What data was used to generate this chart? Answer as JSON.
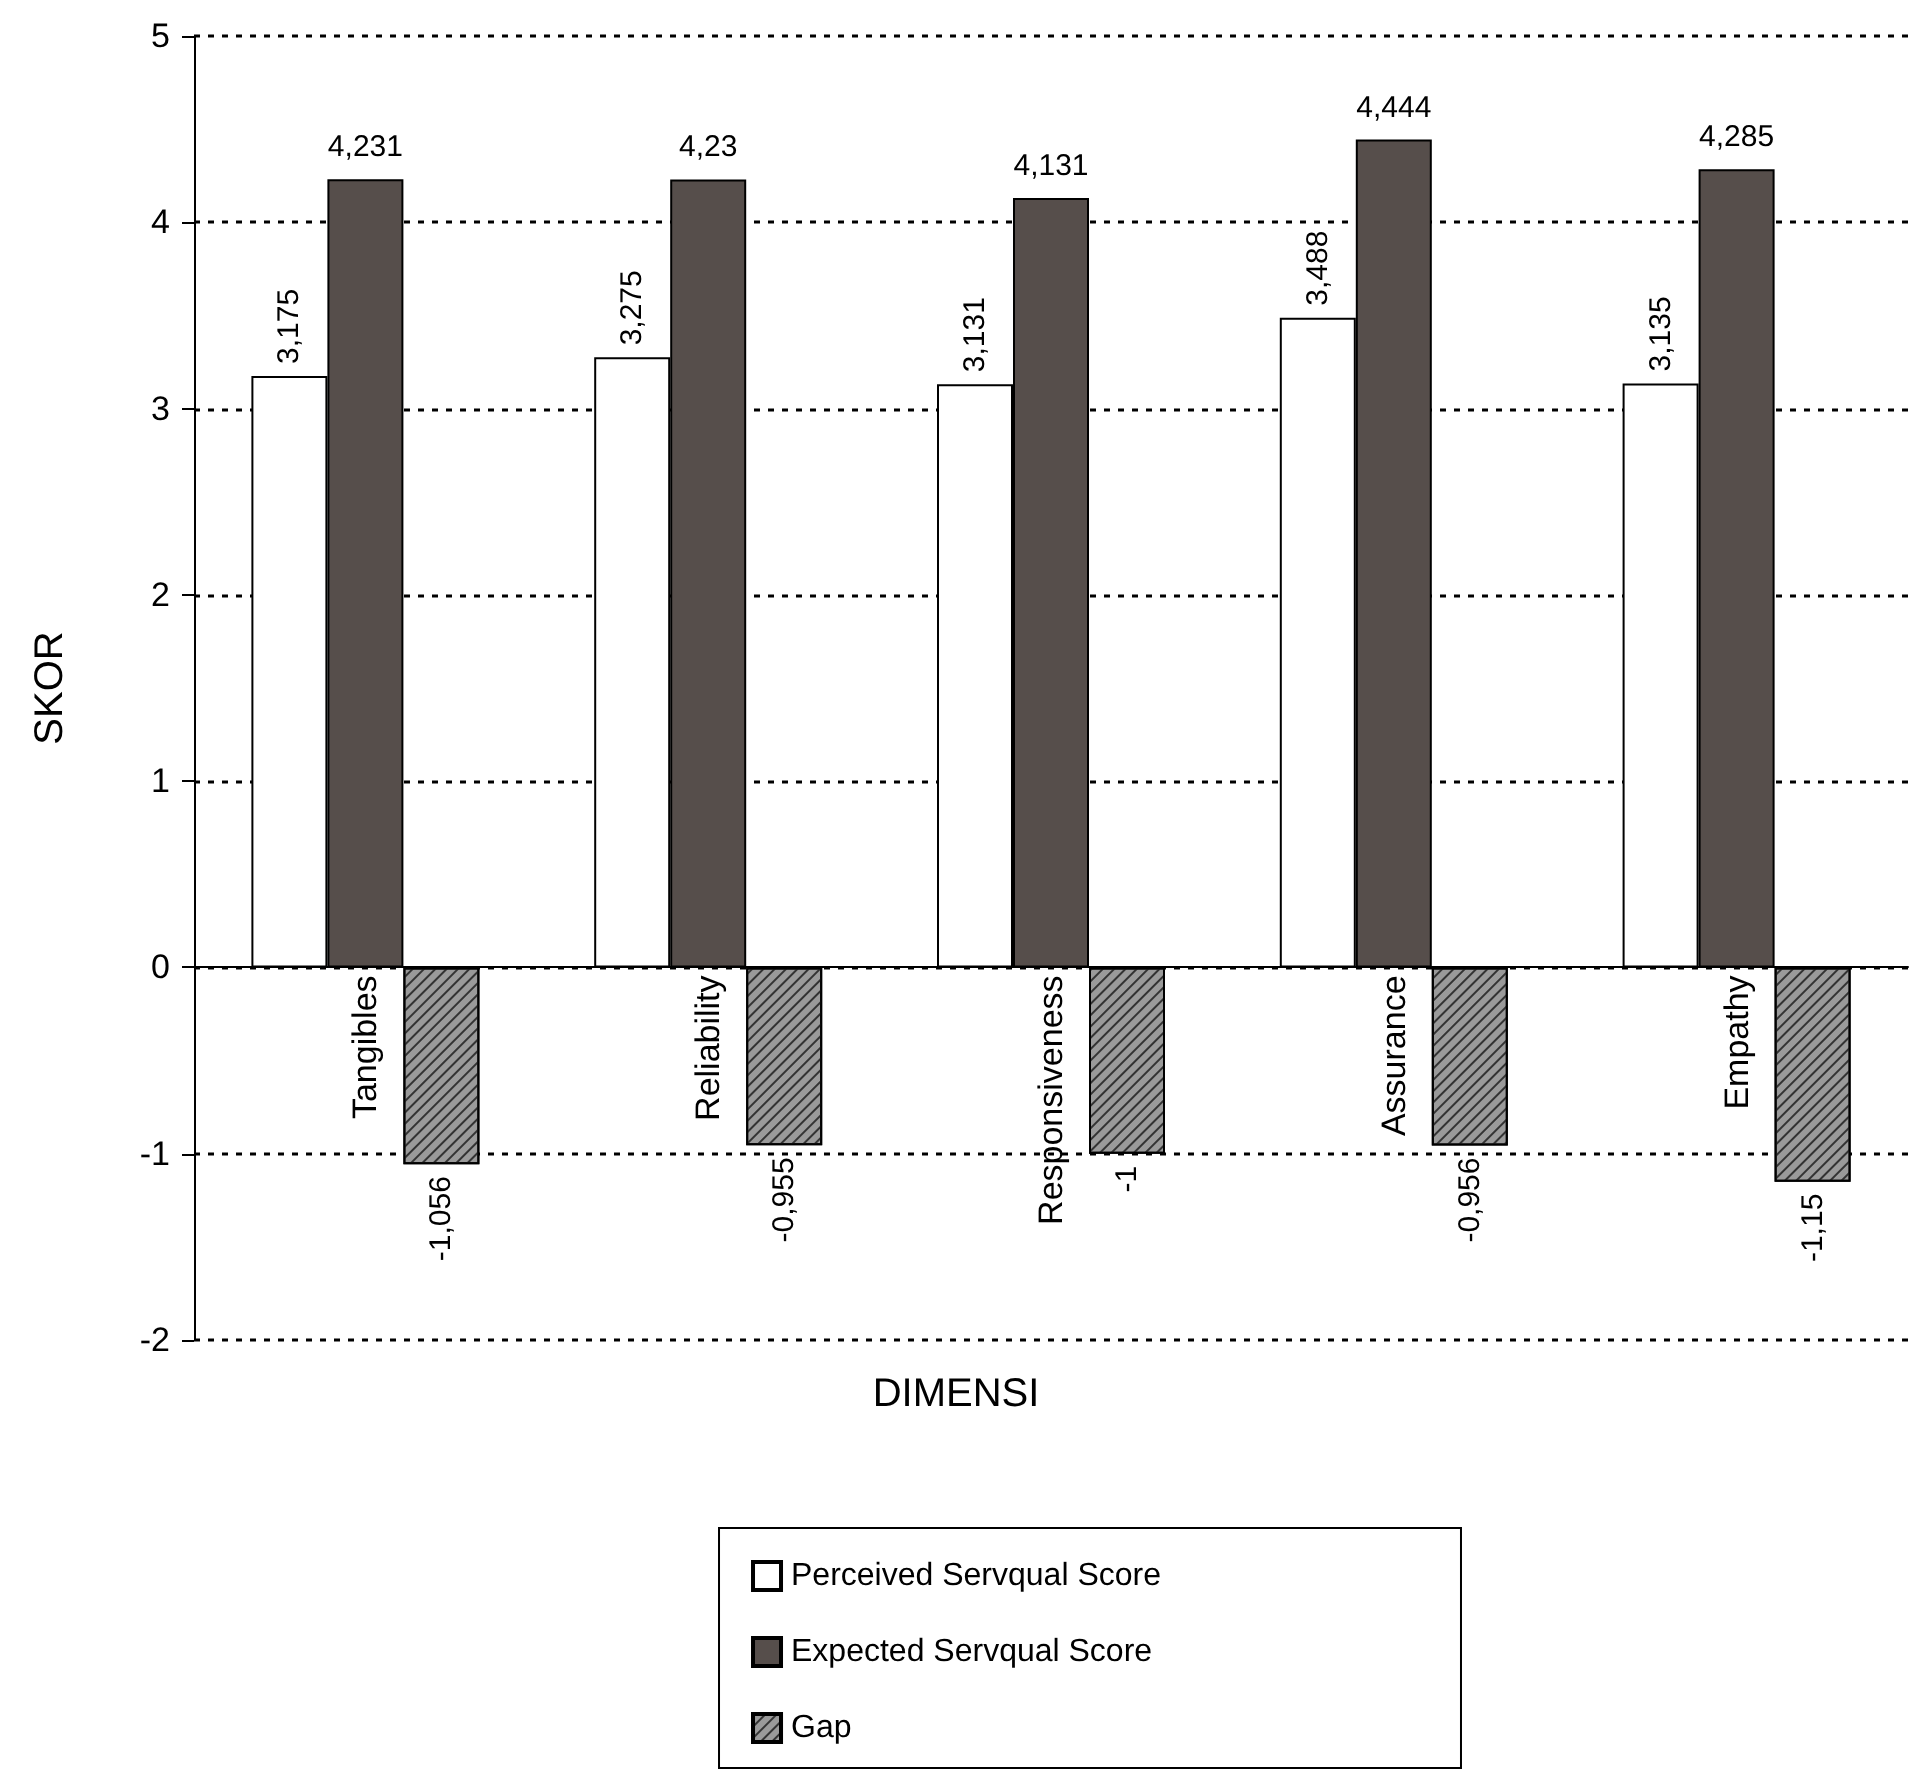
{
  "chart_data": {
    "type": "bar",
    "xlabel": "DIMENSI",
    "ylabel": "SKOR",
    "categories": [
      "Tangibles",
      "Reliability",
      "Responsiveness",
      "Assurance",
      "Empathy"
    ],
    "series": [
      {
        "name": "Perceived Servqual Score",
        "color": "#ffffff",
        "values": [
          3.175,
          3.275,
          3.131,
          3.488,
          3.135
        ],
        "value_labels": [
          "3,175",
          "3,275",
          "3,131",
          "3,488",
          "3,135"
        ]
      },
      {
        "name": "Expected Servqual Score",
        "color": "#564e4b",
        "values": [
          4.231,
          4.23,
          4.131,
          4.444,
          4.285
        ],
        "value_labels": [
          "4,231",
          "4,23",
          "4,131",
          "4,444",
          "4,285"
        ]
      },
      {
        "name": "Gap",
        "color": "#9a9a9a",
        "values": [
          -1.056,
          -0.955,
          -1,
          -0.956,
          -1.15
        ],
        "value_labels": [
          "-1,056",
          "-0,955",
          "-1",
          "-0,956",
          "-1,15"
        ]
      }
    ],
    "ylim": [
      -2,
      5
    ],
    "yticks": [
      -2,
      -1,
      0,
      1,
      2,
      3,
      4,
      5
    ],
    "grid": "y",
    "legend": "bottom"
  }
}
